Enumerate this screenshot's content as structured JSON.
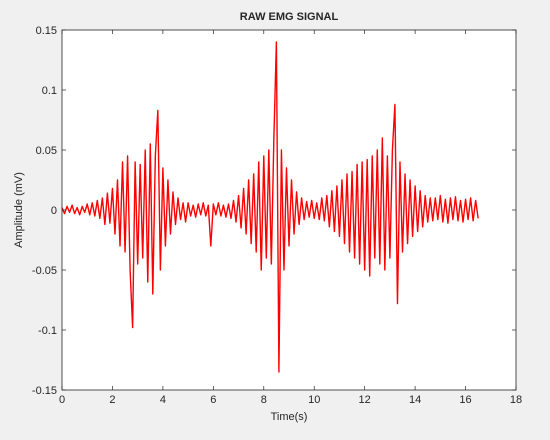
{
  "chart_data": {
    "type": "line",
    "title": "RAW EMG SIGNAL",
    "x_label": "Time(s)",
    "y_label": "Amplitude (mV)",
    "color": "#ff0000",
    "x": [
      0.0,
      0.1,
      0.2,
      0.3,
      0.4,
      0.5,
      0.6,
      0.7,
      0.8,
      0.9,
      1.0,
      1.1,
      1.2,
      1.3,
      1.4,
      1.5,
      1.6,
      1.7,
      1.8,
      1.9,
      2.0,
      2.1,
      2.2,
      2.3,
      2.4,
      2.5,
      2.6,
      2.7,
      2.8,
      2.9,
      3.0,
      3.1,
      3.2,
      3.3,
      3.4,
      3.5,
      3.6,
      3.7,
      3.8,
      3.9,
      4.0,
      4.1,
      4.2,
      4.3,
      4.4,
      4.5,
      4.6,
      4.7,
      4.8,
      4.9,
      5.0,
      5.1,
      5.2,
      5.3,
      5.4,
      5.5,
      5.6,
      5.7,
      5.8,
      5.9,
      6.0,
      6.1,
      6.2,
      6.3,
      6.4,
      6.5,
      6.6,
      6.7,
      6.8,
      6.9,
      7.0,
      7.1,
      7.2,
      7.3,
      7.4,
      7.5,
      7.6,
      7.7,
      7.8,
      7.9,
      8.0,
      8.1,
      8.2,
      8.3,
      8.4,
      8.5,
      8.6,
      8.7,
      8.8,
      8.9,
      9.0,
      9.1,
      9.2,
      9.3,
      9.4,
      9.5,
      9.6,
      9.7,
      9.8,
      9.9,
      10.0,
      10.1,
      10.2,
      10.3,
      10.4,
      10.5,
      10.6,
      10.7,
      10.8,
      10.9,
      11.0,
      11.1,
      11.2,
      11.3,
      11.4,
      11.5,
      11.6,
      11.7,
      11.8,
      11.9,
      12.0,
      12.1,
      12.2,
      12.3,
      12.4,
      12.5,
      12.6,
      12.7,
      12.8,
      12.9,
      13.0,
      13.1,
      13.2,
      13.3,
      13.4,
      13.5,
      13.6,
      13.7,
      13.8,
      13.9,
      14.0,
      14.1,
      14.2,
      14.3,
      14.4,
      14.5,
      14.6,
      14.7,
      14.8,
      14.9,
      15.0,
      15.1,
      15.2,
      15.3,
      15.4,
      15.5,
      15.6,
      15.7,
      15.8,
      15.9,
      16.0,
      16.1,
      16.2,
      16.3,
      16.4,
      16.5
    ],
    "values": [
      0.002,
      -0.003,
      0.003,
      -0.002,
      0.004,
      -0.003,
      0.002,
      -0.004,
      0.003,
      -0.002,
      0.005,
      -0.004,
      0.006,
      -0.005,
      0.008,
      -0.007,
      0.01,
      -0.012,
      0.014,
      -0.011,
      0.018,
      -0.02,
      0.025,
      -0.03,
      0.04,
      -0.035,
      0.045,
      -0.05,
      -0.098,
      0.04,
      -0.045,
      0.038,
      -0.04,
      0.05,
      -0.06,
      0.055,
      -0.07,
      0.045,
      0.083,
      -0.05,
      0.035,
      -0.03,
      0.025,
      -0.02,
      0.015,
      -0.012,
      0.01,
      -0.008,
      0.006,
      -0.01,
      0.006,
      -0.005,
      0.004,
      -0.006,
      0.005,
      -0.004,
      0.006,
      -0.005,
      0.004,
      -0.03,
      0.005,
      -0.004,
      0.006,
      -0.005,
      0.004,
      -0.006,
      0.005,
      -0.007,
      0.008,
      -0.01,
      0.012,
      -0.015,
      0.018,
      -0.02,
      0.025,
      -0.028,
      0.03,
      -0.035,
      0.04,
      -0.05,
      0.045,
      -0.04,
      0.05,
      -0.045,
      0.06,
      0.14,
      -0.135,
      0.05,
      -0.05,
      0.035,
      -0.03,
      0.025,
      -0.02,
      0.015,
      -0.012,
      0.01,
      -0.008,
      0.007,
      -0.006,
      0.008,
      -0.007,
      0.006,
      -0.008,
      0.01,
      -0.009,
      0.012,
      -0.014,
      0.016,
      -0.018,
      0.02,
      -0.022,
      0.025,
      -0.028,
      0.03,
      -0.035,
      0.032,
      -0.04,
      0.038,
      -0.045,
      0.04,
      -0.05,
      0.042,
      -0.055,
      0.045,
      -0.04,
      0.05,
      -0.045,
      0.06,
      -0.05,
      0.045,
      -0.04,
      0.05,
      0.088,
      -0.078,
      0.04,
      -0.035,
      0.03,
      -0.028,
      0.025,
      -0.022,
      0.02,
      -0.018,
      0.016,
      -0.014,
      0.012,
      -0.01,
      0.01,
      -0.009,
      0.01,
      -0.008,
      0.012,
      -0.01,
      0.009,
      -0.011,
      0.01,
      -0.008,
      0.011,
      -0.009,
      0.008,
      -0.01,
      0.009,
      -0.008,
      0.01,
      -0.009,
      0.008,
      -0.007
    ],
    "xlim": [
      0,
      18
    ],
    "xticks": [
      0,
      2,
      4,
      6,
      8,
      10,
      12,
      14,
      16,
      18
    ],
    "ylim": [
      -0.15,
      0.15
    ],
    "yticks": [
      -0.15,
      -0.1,
      -0.05,
      0,
      0.05,
      0.1,
      0.15
    ]
  }
}
